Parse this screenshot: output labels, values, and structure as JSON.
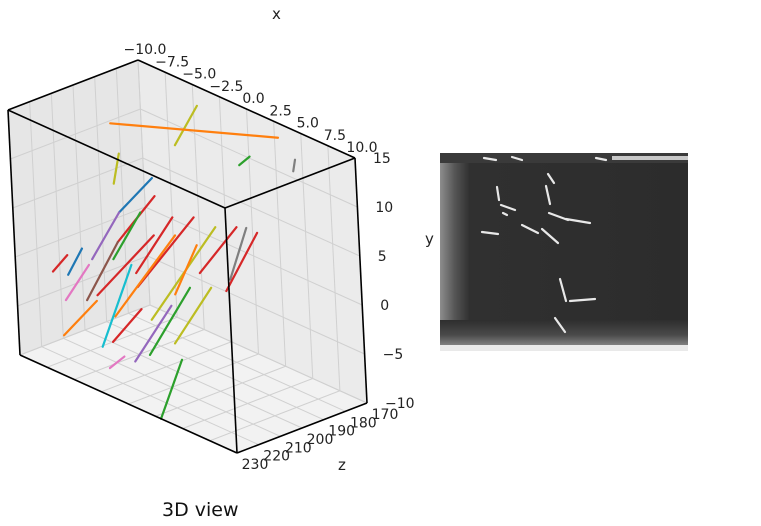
{
  "chart_data": [
    {
      "type": "3d-line",
      "caption": "3D view",
      "xlabel": "x",
      "ylabel": "y",
      "zlabel": "z",
      "xlim": [
        -10,
        10
      ],
      "ylim": [
        -10,
        15
      ],
      "zlim": [
        170,
        230
      ],
      "xticks": [
        "−10.0",
        "−7.5",
        "−5.0",
        "−2.5",
        "0.0",
        "2.5",
        "5.0",
        "7.5",
        "10.0"
      ],
      "yticks": [
        "15",
        "10",
        "5",
        "0",
        "−5",
        "−10"
      ],
      "zticks": [
        "170",
        "180",
        "190",
        "200",
        "210",
        "220",
        "230"
      ],
      "grid": true,
      "series_colors": [
        "#1f77b4",
        "#ff7f0e",
        "#2ca02c",
        "#d62728",
        "#9467bd",
        "#8c564b",
        "#e377c2",
        "#7f7f7f",
        "#bcbd22",
        "#17becf"
      ],
      "series": [
        {
          "color": "#bcbd22",
          "points": [
            [
              -3.0,
              14.5,
              178
            ],
            [
              -4.0,
              10.5,
              184
            ]
          ]
        },
        {
          "color": "#ff7f0e",
          "points": [
            [
              -7.5,
              12.0,
              196
            ],
            [
              4.5,
              15.0,
              178
            ]
          ]
        },
        {
          "color": "#7f7f7f",
          "points": [
            [
              6.0,
              13.5,
              178
            ],
            [
              6.2,
              12.6,
              180
            ]
          ]
        },
        {
          "color": "#2ca02c",
          "points": [
            [
              2.8,
              12.2,
              188
            ],
            [
              3.4,
              13.2,
              186
            ]
          ]
        },
        {
          "color": "#bcbd22",
          "points": [
            [
              -6.0,
              10.0,
              200
            ],
            [
              -6.2,
              7.0,
              202
            ]
          ]
        },
        {
          "color": "#d62728",
          "points": [
            [
              -2.0,
              8.0,
              204
            ],
            [
              -4.0,
              3.0,
              212
            ]
          ]
        },
        {
          "color": "#d62728",
          "points": [
            [
              0.0,
              7.0,
              206
            ],
            [
              -2.0,
              1.0,
              214
            ]
          ]
        },
        {
          "color": "#d62728",
          "points": [
            [
              2.0,
              8.0,
              206
            ],
            [
              -1.5,
              0.0,
              216
            ]
          ]
        },
        {
          "color": "#d62728",
          "points": [
            [
              6.0,
              9.0,
              206
            ],
            [
              4.0,
              4.0,
              214
            ]
          ]
        },
        {
          "color": "#bcbd22",
          "points": [
            [
              4.0,
              8.0,
              206
            ],
            [
              0.5,
              -2.0,
              220
            ]
          ]
        },
        {
          "color": "#1f77b4",
          "points": [
            [
              -3.0,
              9.0,
              200
            ],
            [
              -5.0,
              5.0,
              206
            ]
          ]
        },
        {
          "color": "#ff7f0e",
          "points": [
            [
              1.0,
              6.0,
              210
            ],
            [
              -2.5,
              -3.0,
              222
            ]
          ]
        },
        {
          "color": "#d62728",
          "points": [
            [
              -1.0,
              5.0,
              210
            ],
            [
              -4.5,
              -2.0,
              220
            ]
          ]
        },
        {
          "color": "#2ca02c",
          "points": [
            [
              3.0,
              2.0,
              214
            ],
            [
              1.0,
              -5.0,
              224
            ]
          ]
        },
        {
          "color": "#8c564b",
          "points": [
            [
              -4.0,
              3.0,
              212
            ],
            [
              -5.5,
              -3.0,
              220
            ]
          ]
        },
        {
          "color": "#e377c2",
          "points": [
            [
              -6.0,
              0.0,
              216
            ],
            [
              -7.5,
              -4.0,
              220
            ]
          ]
        },
        {
          "color": "#9467bd",
          "points": [
            [
              2.0,
              0.0,
              218
            ],
            [
              0.0,
              -6.0,
              226
            ]
          ]
        },
        {
          "color": "#17becf",
          "points": [
            [
              -2.0,
              2.0,
              216
            ],
            [
              -3.0,
              -6.0,
              226
            ]
          ]
        },
        {
          "color": "#ff7f0e",
          "points": [
            [
              -5.0,
              -3.0,
              218
            ],
            [
              -7.0,
              -7.0,
              224
            ]
          ]
        },
        {
          "color": "#d62728",
          "points": [
            [
              0.0,
              -1.0,
              222
            ],
            [
              -2.0,
              -5.0,
              226
            ]
          ]
        },
        {
          "color": "#2ca02c",
          "points": [
            [
              4.0,
              -4.0,
              224
            ],
            [
              3.0,
              -10.0,
              230
            ]
          ]
        },
        {
          "color": "#bcbd22",
          "points": [
            [
              5.0,
              3.0,
              214
            ],
            [
              3.0,
              -3.0,
              222
            ]
          ]
        },
        {
          "color": "#1f77b4",
          "points": [
            [
              -7.0,
              1.0,
              214
            ],
            [
              -8.0,
              -2.0,
              216
            ]
          ]
        },
        {
          "color": "#d62728",
          "points": [
            [
              -8.0,
              0.0,
              216
            ],
            [
              -9.0,
              -2.0,
              218
            ]
          ]
        },
        {
          "color": "#7f7f7f",
          "points": [
            [
              6.5,
              9.0,
              204
            ],
            [
              6.0,
              4.0,
              210
            ]
          ]
        },
        {
          "color": "#e377c2",
          "points": [
            [
              -1.0,
              -6.0,
              226
            ],
            [
              -2.0,
              -7.5,
              228
            ]
          ]
        },
        {
          "color": "#2ca02c",
          "points": [
            [
              -3.0,
              6.0,
              206
            ],
            [
              -4.5,
              1.0,
              212
            ]
          ]
        },
        {
          "color": "#9467bd",
          "points": [
            [
              -5.0,
              5.0,
              206
            ],
            [
              -6.5,
              0.0,
              212
            ]
          ]
        },
        {
          "color": "#ff7f0e",
          "points": [
            [
              3.0,
              6.0,
              210
            ],
            [
              2.0,
              1.0,
              216
            ]
          ]
        },
        {
          "color": "#d62728",
          "points": [
            [
              7.5,
              9.0,
              204
            ],
            [
              6.0,
              3.0,
              212
            ]
          ]
        }
      ]
    },
    {
      "type": "image",
      "ylabel": "y"
    }
  ]
}
